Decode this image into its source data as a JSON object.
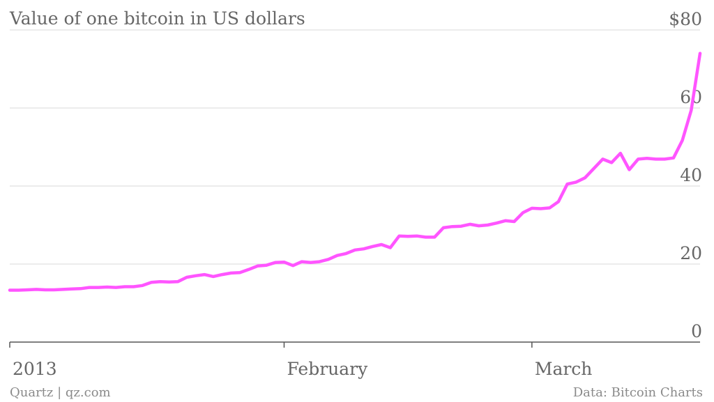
{
  "chart_data": {
    "type": "line",
    "title": "Value of one bitcoin in US dollars",
    "xlabel": "",
    "ylabel": "",
    "ylim": [
      0,
      80
    ],
    "y_ticks": [
      {
        "value": 0,
        "label": "0"
      },
      {
        "value": 20,
        "label": "20"
      },
      {
        "value": 40,
        "label": "40"
      },
      {
        "value": 60,
        "label": "60"
      },
      {
        "value": 80,
        "label": "$80"
      }
    ],
    "x_ticks": [
      {
        "date": "2013-01-01",
        "label": "2013"
      },
      {
        "date": "2013-02-01",
        "label": "February"
      },
      {
        "date": "2013-03-01",
        "label": "March"
      }
    ],
    "xlim": [
      "2013-01-01",
      "2013-03-20"
    ],
    "grid": true,
    "color": "#ff55ff",
    "series": [
      {
        "x": [
          "2013-01-01",
          "2013-01-02",
          "2013-01-03",
          "2013-01-04",
          "2013-01-05",
          "2013-01-06",
          "2013-01-07",
          "2013-01-08",
          "2013-01-09",
          "2013-01-10",
          "2013-01-11",
          "2013-01-12",
          "2013-01-13",
          "2013-01-14",
          "2013-01-15",
          "2013-01-16",
          "2013-01-17",
          "2013-01-18",
          "2013-01-19",
          "2013-01-20",
          "2013-01-21",
          "2013-01-22",
          "2013-01-23",
          "2013-01-24",
          "2013-01-25",
          "2013-01-26",
          "2013-01-27",
          "2013-01-28",
          "2013-01-29",
          "2013-01-30",
          "2013-01-31",
          "2013-02-01",
          "2013-02-02",
          "2013-02-03",
          "2013-02-04",
          "2013-02-05",
          "2013-02-06",
          "2013-02-07",
          "2013-02-08",
          "2013-02-09",
          "2013-02-10",
          "2013-02-11",
          "2013-02-12",
          "2013-02-13",
          "2013-02-14",
          "2013-02-15",
          "2013-02-16",
          "2013-02-17",
          "2013-02-18",
          "2013-02-19",
          "2013-02-20",
          "2013-02-21",
          "2013-02-22",
          "2013-02-23",
          "2013-02-24",
          "2013-02-25",
          "2013-02-26",
          "2013-02-27",
          "2013-02-28",
          "2013-03-01",
          "2013-03-02",
          "2013-03-03",
          "2013-03-04",
          "2013-03-05",
          "2013-03-06",
          "2013-03-07",
          "2013-03-08",
          "2013-03-09",
          "2013-03-10",
          "2013-03-11",
          "2013-03-12",
          "2013-03-13",
          "2013-03-14",
          "2013-03-15",
          "2013-03-16",
          "2013-03-17",
          "2013-03-18",
          "2013-03-19",
          "2013-03-20"
        ],
        "values": [
          13.3,
          13.3,
          13.4,
          13.5,
          13.4,
          13.4,
          13.5,
          13.6,
          13.7,
          14.0,
          14.0,
          14.1,
          14.0,
          14.2,
          14.2,
          14.5,
          15.3,
          15.5,
          15.4,
          15.5,
          16.6,
          17.0,
          17.3,
          16.8,
          17.3,
          17.7,
          17.8,
          18.6,
          19.5,
          19.7,
          20.4,
          20.5,
          19.6,
          20.6,
          20.4,
          20.6,
          21.2,
          22.2,
          22.7,
          23.6,
          23.9,
          24.5,
          25.0,
          24.2,
          27.2,
          27.1,
          27.2,
          26.9,
          26.9,
          29.3,
          29.6,
          29.7,
          30.2,
          29.8,
          30.0,
          30.5,
          31.1,
          30.9,
          33.2,
          34.3,
          34.2,
          34.4,
          36.0,
          40.5,
          41.0,
          42.1,
          44.5,
          46.9,
          46.0,
          48.4,
          44.2,
          46.9,
          47.1,
          46.9,
          46.9,
          47.2,
          51.7,
          59.4,
          74.0
        ]
      }
    ]
  },
  "footer": {
    "source_left": "Quartz | qz.com",
    "source_right": "Data: Bitcoin Charts"
  }
}
